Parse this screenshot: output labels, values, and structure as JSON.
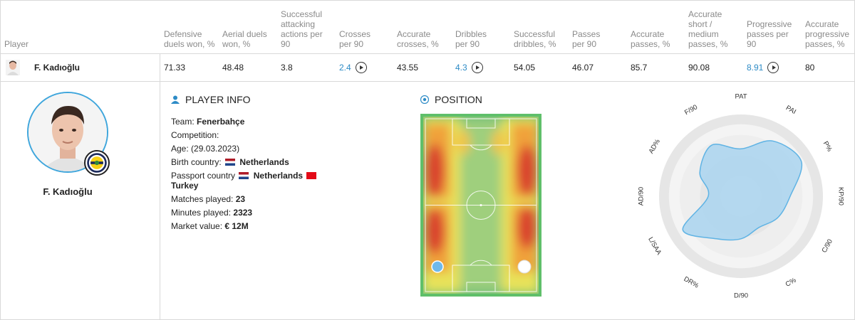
{
  "table": {
    "headers": [
      {
        "key": "player",
        "label": "Player"
      },
      {
        "key": "def",
        "label": "Defensive duels won, %"
      },
      {
        "key": "aer",
        "label": "Aerial duels won, %"
      },
      {
        "key": "saa",
        "label": "Successful attacking actions per 90"
      },
      {
        "key": "cro",
        "label": "Crosses per 90"
      },
      {
        "key": "acr",
        "label": "Accurate crosses, %"
      },
      {
        "key": "dri",
        "label": "Dribbles per 90"
      },
      {
        "key": "sdr",
        "label": "Successful dribbles, %"
      },
      {
        "key": "pas",
        "label": "Passes per 90"
      },
      {
        "key": "apa",
        "label": "Accurate passes, %"
      },
      {
        "key": "asm",
        "label": "Accurate short / medium passes, %"
      },
      {
        "key": "ppa",
        "label": "Progressive passes per 90"
      },
      {
        "key": "app",
        "label": "Accurate progressive passes, %"
      }
    ],
    "row": {
      "player": "F. Kadıoğlu",
      "def": "71.33",
      "aer": "48.48",
      "saa": "3.8",
      "cro": "2.4",
      "acr": "43.55",
      "dri": "4.3",
      "sdr": "54.05",
      "pas": "46.07",
      "apa": "85.7",
      "asm": "90.08",
      "ppa": "8.91",
      "app": "80"
    }
  },
  "profile": {
    "name": "F. Kadıoğlu"
  },
  "player_info": {
    "title": "PLAYER INFO",
    "team_label": "Team:",
    "team": "Fenerbahçe",
    "competition_label": "Competition:",
    "age_label": "Age:",
    "age": "(29.03.2023)",
    "birth_label": "Birth country:",
    "birth_country": "Netherlands",
    "passport_label": "Passport country",
    "passport_1": "Netherlands",
    "passport_2": "Turkey",
    "matches_label": "Matches played:",
    "matches": "23",
    "minutes_label": "Minutes played:",
    "minutes": "2323",
    "market_label": "Market value:",
    "market": "€ 12M"
  },
  "position": {
    "title": "POSITION"
  },
  "radar": {
    "axes": [
      "PAT",
      "PAI",
      "P%",
      "KP/90",
      "C/90",
      "C%",
      "D/90",
      "DR%",
      "L/SAA",
      "AD/90",
      "AD%",
      "F/90"
    ],
    "values": [
      0.58,
      0.78,
      0.85,
      0.6,
      0.52,
      0.44,
      0.52,
      0.6,
      0.82,
      0.4,
      0.58,
      0.72
    ]
  },
  "colors": {
    "accent": "#2d8bc6",
    "radar_fill": "#a9d4ef",
    "pitch_green": "#5fbf6a"
  }
}
